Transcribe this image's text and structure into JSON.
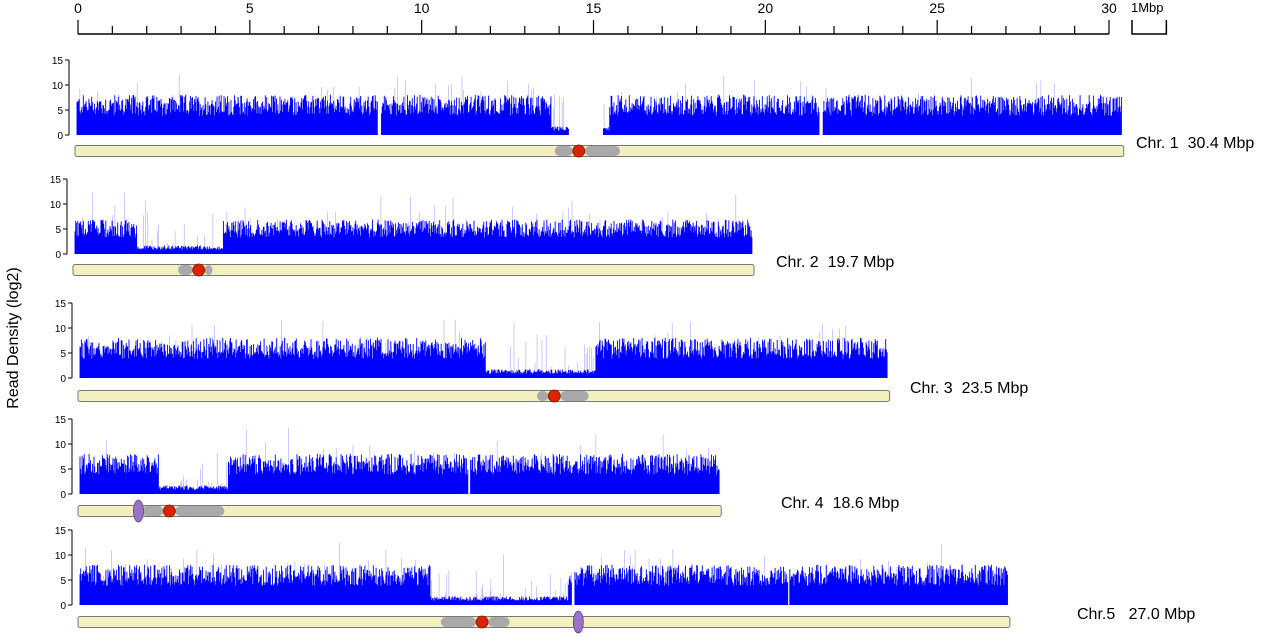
{
  "chart_data": {
    "type": "area",
    "ylabel": "Read Density (log2)",
    "y_ticks": [
      "15",
      "10",
      "5",
      "0"
    ],
    "ylim": [
      0,
      15
    ],
    "x_axis": {
      "ticks": [
        "0",
        "5",
        "10",
        "15",
        "20",
        "25",
        "30"
      ],
      "range_mbp": [
        0,
        30
      ],
      "minor_tick_every_mbp": 1
    },
    "scale_bar": {
      "label": "1Mbp",
      "length_mbp": 1
    },
    "colors": {
      "density": "#0000ff",
      "chromosome_body": "#f3f0c0",
      "pericentromere": "#a9a9a9",
      "centromere": "#dd2200",
      "knob": "#9a72c6"
    },
    "chromosomes": [
      {
        "label": "Chr. 1  30.4 Mbp",
        "length_mbp": 30.4,
        "centromere_mbp": 14.6,
        "pericentromere_mbp": [
          13.9,
          15.8
        ],
        "knobs_mbp": [],
        "typical_density": 7,
        "gaps_mbp": [
          [
            8.75,
            8.85
          ],
          [
            14.3,
            15.3
          ],
          [
            21.6,
            21.7
          ]
        ],
        "low_density_mbp": [
          [
            13.8,
            15.5
          ]
        ]
      },
      {
        "label": "Chr. 2  19.7 Mbp",
        "length_mbp": 19.7,
        "centromere_mbp": 3.6,
        "pericentromere_mbp": [
          3.0,
          4.0
        ],
        "knobs_mbp": [],
        "typical_density": 6,
        "gaps_mbp": [],
        "low_density_mbp": [
          [
            1.8,
            4.3
          ]
        ]
      },
      {
        "label": "Chr. 3  23.5 Mbp",
        "length_mbp": 23.5,
        "centromere_mbp": 13.8,
        "pericentromere_mbp": [
          13.3,
          14.8
        ],
        "knobs_mbp": [],
        "typical_density": 7,
        "gaps_mbp": [],
        "low_density_mbp": [
          [
            11.8,
            15.0
          ]
        ]
      },
      {
        "label": "Chr. 4  18.6 Mbp",
        "length_mbp": 18.6,
        "centromere_mbp": 2.6,
        "pericentromere_mbp": [
          1.8,
          4.2
        ],
        "knobs_mbp": [
          1.7
        ],
        "typical_density": 7,
        "gaps_mbp": [
          [
            11.3,
            11.35
          ]
        ],
        "low_density_mbp": [
          [
            2.3,
            4.3
          ]
        ]
      },
      {
        "label": "Chr.5   27.0 Mbp",
        "length_mbp": 27.0,
        "centromere_mbp": 11.7,
        "pericentromere_mbp": [
          10.5,
          12.5
        ],
        "knobs_mbp": [
          14.5
        ],
        "typical_density": 7,
        "gaps_mbp": [
          [
            14.3,
            14.4
          ],
          [
            20.6,
            20.65
          ]
        ],
        "low_density_mbp": [
          [
            10.2,
            14.2
          ]
        ]
      }
    ]
  }
}
